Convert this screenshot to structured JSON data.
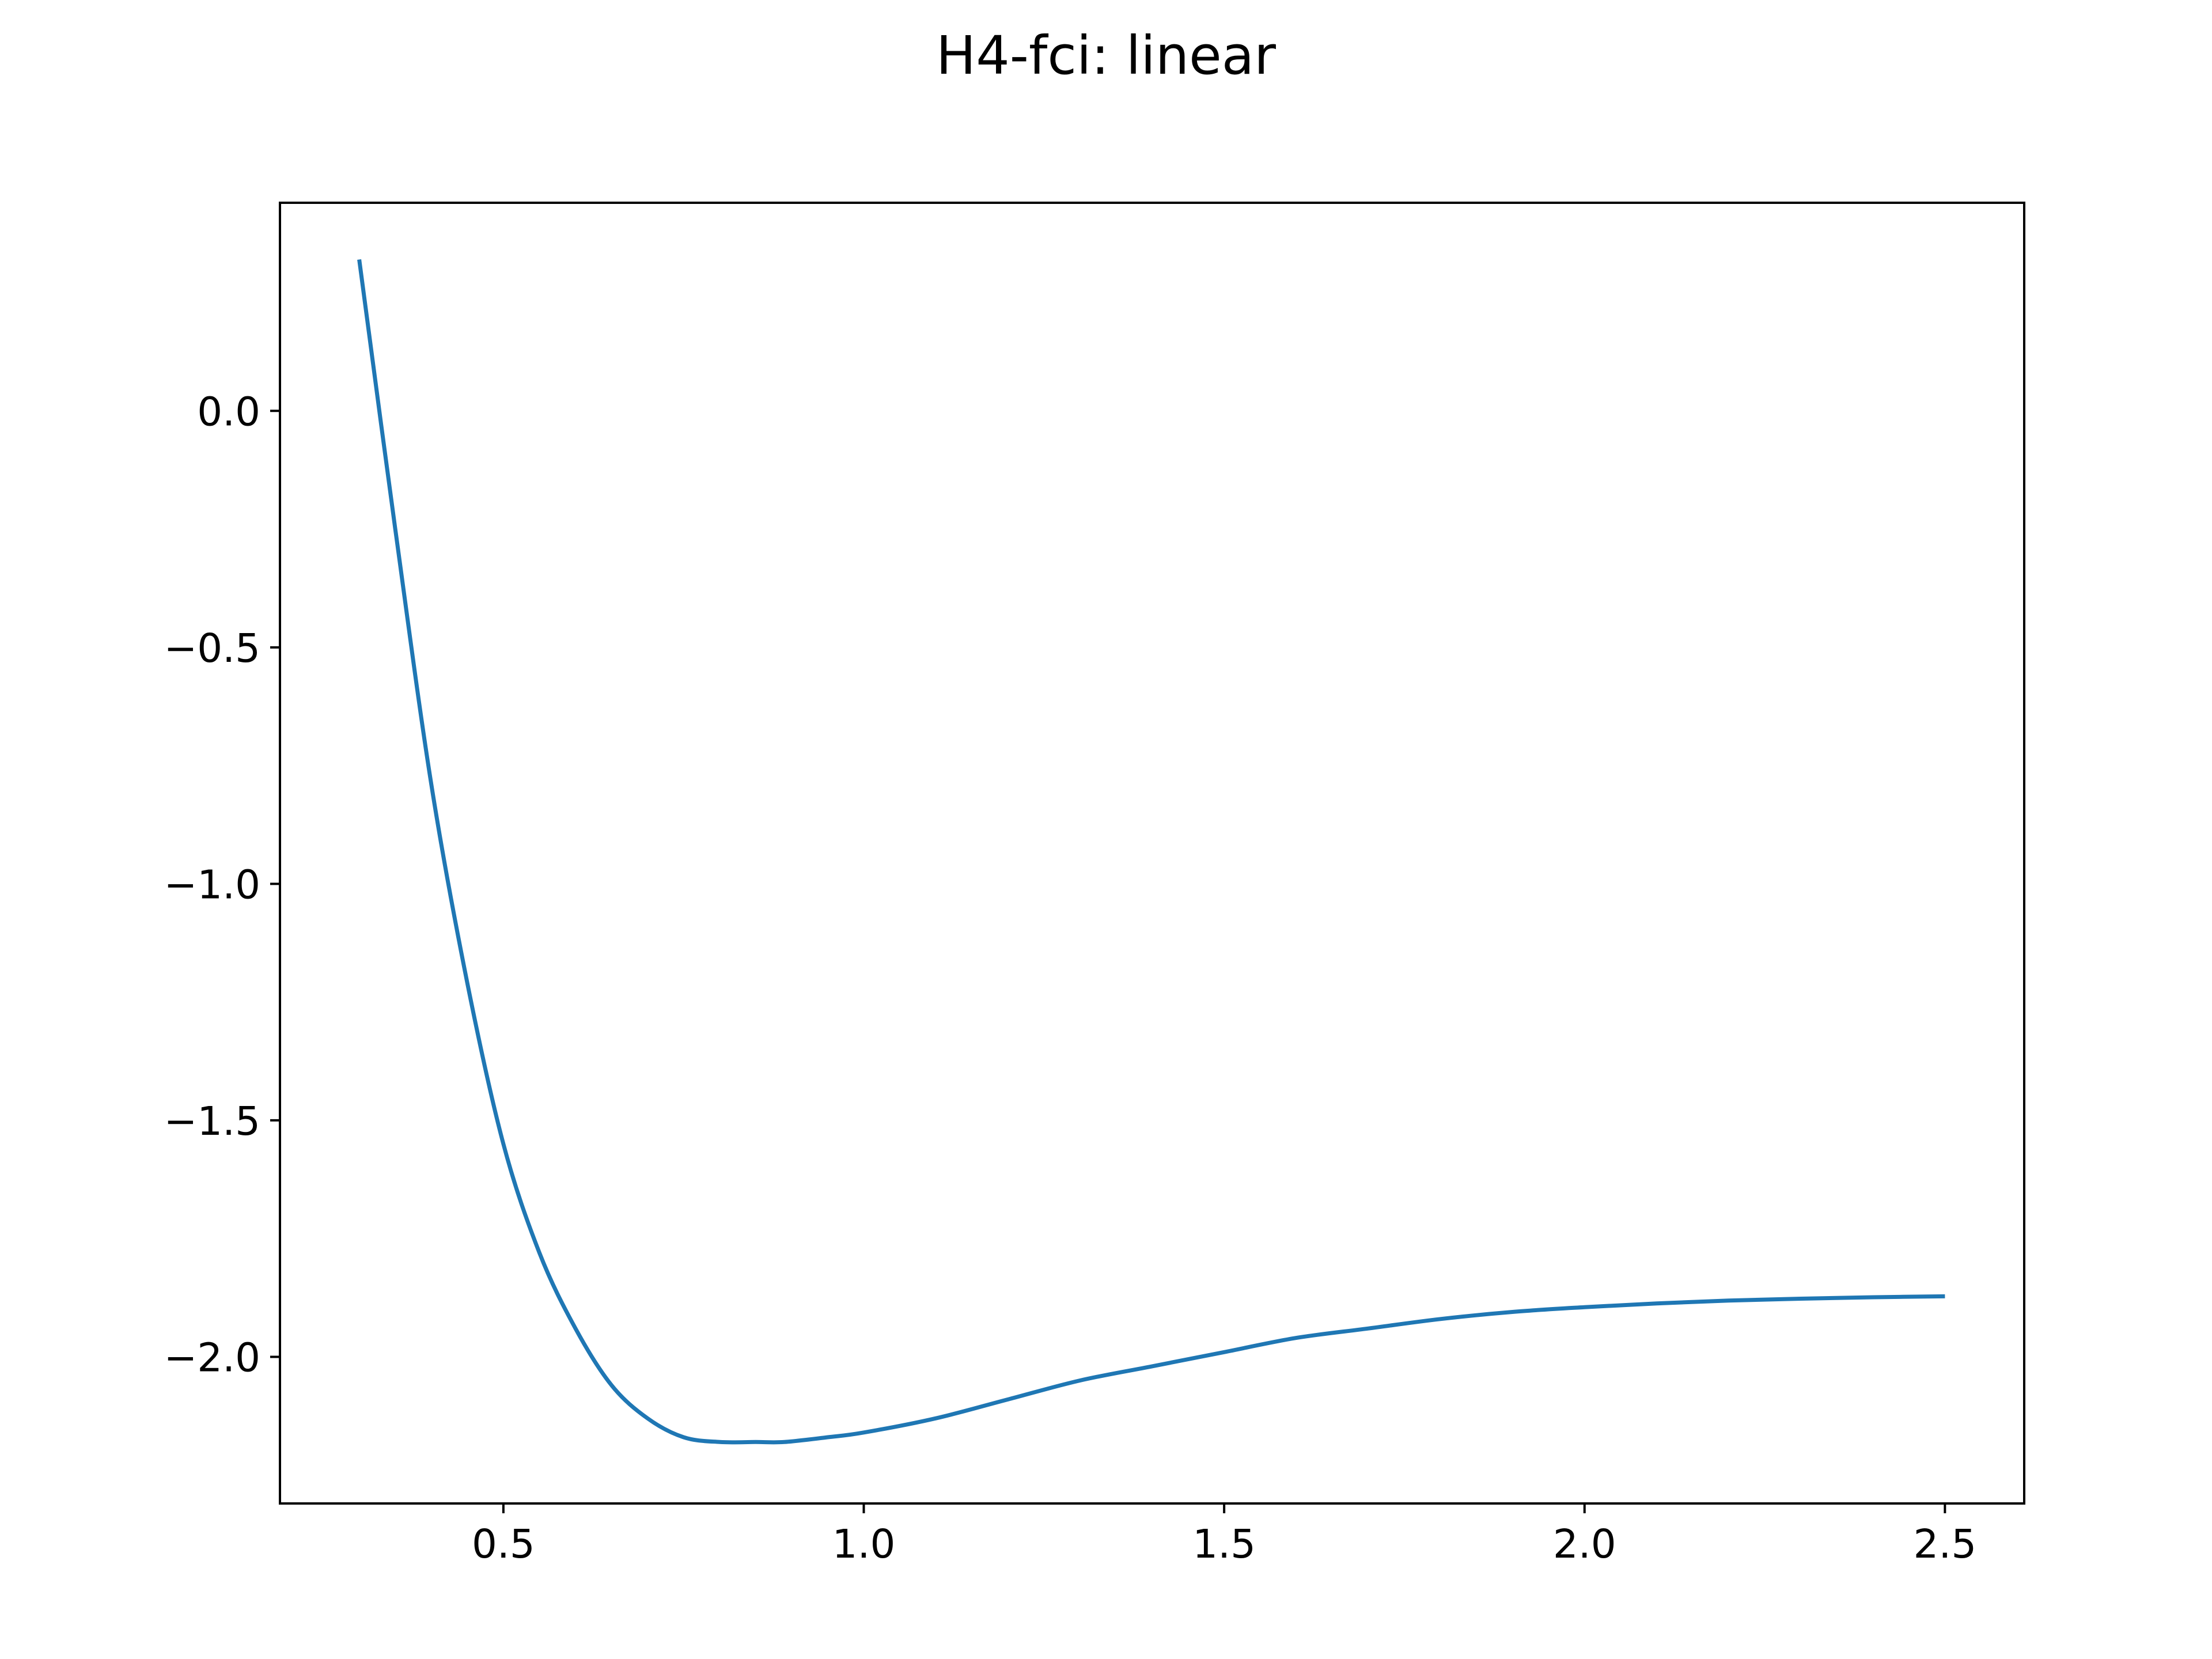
{
  "chart_data": {
    "type": "line",
    "title": "H4-fci: linear",
    "xlabel": "",
    "ylabel": "",
    "xlim": [
      0.19,
      2.61
    ],
    "ylim": [
      -2.31,
      0.44
    ],
    "x_ticks": [
      0.5,
      1.0,
      1.5,
      2.0,
      2.5
    ],
    "x_tick_labels": [
      "0.5",
      "1.0",
      "1.5",
      "2.0",
      "2.5"
    ],
    "y_ticks": [
      0.0,
      -0.5,
      -1.0,
      -1.5,
      -2.0
    ],
    "y_tick_labels": [
      "0.0",
      "−0.5",
      "−1.0",
      "−1.5",
      "−2.0"
    ],
    "grid": false,
    "legend": "none",
    "line_color": "#1f77b4",
    "series": [
      {
        "x": [
          0.3,
          0.35,
          0.4,
          0.45,
          0.5,
          0.55,
          0.6,
          0.65,
          0.7,
          0.75,
          0.8,
          0.85,
          0.89,
          0.95,
          1.0,
          1.1,
          1.2,
          1.3,
          1.4,
          1.5,
          1.6,
          1.7,
          1.8,
          1.9,
          2.0,
          2.1,
          2.2,
          2.3,
          2.4,
          2.5
        ],
        "y": [
          0.32,
          -0.25,
          -0.79,
          -1.21,
          -1.55,
          -1.78,
          -1.94,
          -2.06,
          -2.13,
          -2.17,
          -2.18,
          -2.18,
          -2.18,
          -2.17,
          -2.16,
          -2.13,
          -2.09,
          -2.05,
          -2.02,
          -1.99,
          -1.96,
          -1.94,
          -1.92,
          -1.905,
          -1.895,
          -1.887,
          -1.881,
          -1.877,
          -1.874,
          -1.872
        ]
      }
    ]
  }
}
